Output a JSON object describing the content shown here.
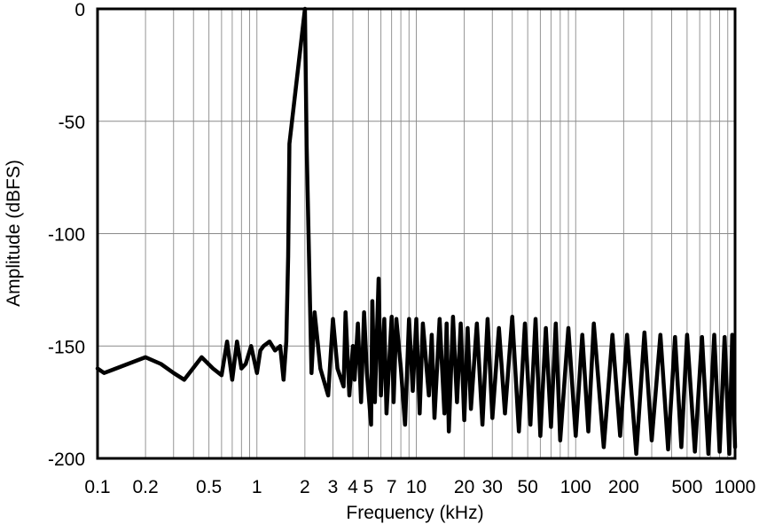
{
  "chart_data": {
    "type": "line",
    "title": "",
    "xlabel": "Frequency (kHz)",
    "ylabel": "Amplitude (dBFS)",
    "xscale": "log",
    "xlim": [
      0.1,
      1000
    ],
    "ylim": [
      -200,
      0
    ],
    "grid": true,
    "line_color": "#000000",
    "x_ticks": [
      {
        "value": 0.1,
        "label": "0.1"
      },
      {
        "value": 0.2,
        "label": "0.2"
      },
      {
        "value": 0.5,
        "label": "0.5"
      },
      {
        "value": 1,
        "label": "1"
      },
      {
        "value": 2,
        "label": "2"
      },
      {
        "value": 3,
        "label": "3"
      },
      {
        "value": 4,
        "label": "4"
      },
      {
        "value": 5,
        "label": "5"
      },
      {
        "value": 7,
        "label": "7"
      },
      {
        "value": 10,
        "label": "10"
      },
      {
        "value": 20,
        "label": "20"
      },
      {
        "value": 30,
        "label": "30"
      },
      {
        "value": 50,
        "label": "50"
      },
      {
        "value": 100,
        "label": "100"
      },
      {
        "value": 200,
        "label": "200"
      },
      {
        "value": 500,
        "label": "500"
      },
      {
        "value": 1000,
        "label": "1000"
      }
    ],
    "y_ticks": [
      {
        "value": 0,
        "label": "0"
      },
      {
        "value": -50,
        "label": "-50"
      },
      {
        "value": -100,
        "label": "-100"
      },
      {
        "value": -150,
        "label": "-150"
      },
      {
        "value": -200,
        "label": "-200"
      }
    ],
    "series": [
      {
        "x": [
          0.1,
          0.11,
          0.2,
          0.25,
          0.3,
          0.35,
          0.45,
          0.53,
          0.6,
          0.65,
          0.7,
          0.75,
          0.8,
          0.85,
          0.92,
          1.0,
          1.05,
          1.1,
          1.2,
          1.3,
          1.4,
          1.47,
          1.53,
          1.57,
          1.6,
          2.0,
          2.05,
          2.2,
          2.3,
          2.5,
          2.8,
          3.0,
          3.2,
          3.5,
          3.6,
          3.8,
          4.0,
          4.1,
          4.3,
          4.5,
          4.7,
          4.9,
          5.2,
          5.3,
          5.5,
          5.8,
          6.0,
          6.3,
          6.5,
          7.0,
          7.2,
          7.5,
          8.0,
          8.5,
          9.0,
          9.5,
          10.0,
          10.5,
          11.0,
          12.0,
          12.5,
          13.0,
          14.0,
          15.0,
          15.5,
          16.0,
          17.0,
          18.0,
          19.0,
          20.0,
          21.0,
          22.0,
          24.0,
          26.0,
          28.0,
          30.0,
          33.0,
          36.0,
          40.0,
          44.0,
          48.0,
          52.0,
          56.0,
          60.0,
          65.0,
          70.0,
          75.0,
          80.0,
          90.0,
          100.0,
          110.0,
          120.0,
          130.0,
          150.0,
          170.0,
          190.0,
          210.0,
          240.0,
          270.0,
          300.0,
          340.0,
          380.0,
          420.0,
          460.0,
          500.0,
          560.0,
          620.0,
          680.0,
          740.0,
          800.0,
          860.0,
          920.0,
          960.0,
          1000.0
        ],
        "y": [
          -160,
          -162,
          -155,
          -158,
          -162,
          -165,
          -155,
          -160,
          -163,
          -148,
          -165,
          -148,
          -160,
          -158,
          -150,
          -162,
          -152,
          -150,
          -148,
          -152,
          -150,
          -165,
          -148,
          -110,
          -60,
          0,
          -60,
          -162,
          -135,
          -160,
          -172,
          -138,
          -160,
          -168,
          -135,
          -172,
          -150,
          -165,
          -140,
          -175,
          -135,
          -162,
          -185,
          -130,
          -175,
          -120,
          -172,
          -138,
          -180,
          -137,
          -175,
          -138,
          -160,
          -185,
          -138,
          -170,
          -138,
          -180,
          -140,
          -172,
          -145,
          -182,
          -138,
          -180,
          -140,
          -188,
          -137,
          -175,
          -140,
          -183,
          -142,
          -178,
          -140,
          -185,
          -138,
          -182,
          -142,
          -180,
          -137,
          -188,
          -140,
          -185,
          -138,
          -190,
          -142,
          -186,
          -140,
          -192,
          -142,
          -190,
          -145,
          -188,
          -140,
          -195,
          -145,
          -190,
          -145,
          -198,
          -144,
          -192,
          -145,
          -196,
          -146,
          -195,
          -145,
          -197,
          -146,
          -198,
          -145,
          -197,
          -146,
          -198,
          -145,
          -195
        ]
      }
    ]
  }
}
